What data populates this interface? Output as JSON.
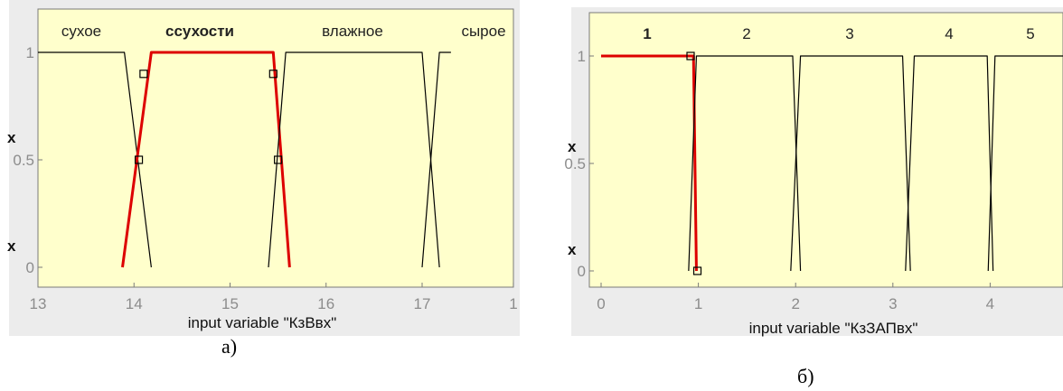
{
  "captions": {
    "a": "а)",
    "b": "б)"
  },
  "chart_data": [
    {
      "type": "line",
      "title": "",
      "xlabel": "input variable \"КзВвх\"",
      "ylabel": "",
      "ylabel_fragments": [
        "x",
        "x"
      ],
      "xlim": [
        13,
        17.1
      ],
      "ylim": [
        0,
        1
      ],
      "x_ticks": [
        "13",
        "14",
        "15",
        "16",
        "17",
        "1"
      ],
      "y_ticks": [
        "1",
        "0.5",
        "0"
      ],
      "membership_functions": [
        {
          "name": "сухое",
          "points": [
            [
              13,
              1
            ],
            [
              13.9,
              1
            ],
            [
              14.18,
              0
            ]
          ],
          "highlighted": false
        },
        {
          "name": "ссухости",
          "points": [
            [
              13.88,
              0
            ],
            [
              14.18,
              1
            ],
            [
              15.45,
              1
            ],
            [
              15.62,
              0
            ]
          ],
          "highlighted": true
        },
        {
          "name": "влажное",
          "points": [
            [
              15.4,
              0
            ],
            [
              15.58,
              1
            ],
            [
              17.0,
              1
            ],
            [
              17.18,
              0
            ]
          ],
          "highlighted": false
        },
        {
          "name": "сырое",
          "points": [
            [
              17.0,
              0
            ],
            [
              17.18,
              1
            ],
            [
              17.3,
              1
            ]
          ],
          "highlighted": false
        }
      ],
      "selected_points": [
        [
          14.05,
          0.5
        ],
        [
          14.1,
          0.9
        ],
        [
          15.45,
          0.9
        ],
        [
          15.5,
          0.5
        ]
      ],
      "colors": {
        "background": "#ffffcc",
        "line": "#000000",
        "highlight": "#dd0000"
      }
    },
    {
      "type": "line",
      "title": "",
      "xlabel": "input variable \"КзЗАПвх\"",
      "ylabel": "",
      "ylabel_fragments": [
        "x",
        "х"
      ],
      "xlim": [
        0,
        5
      ],
      "ylim": [
        0,
        1
      ],
      "x_ticks": [
        "0",
        "1",
        "2",
        "3",
        "4"
      ],
      "y_ticks": [
        "1",
        "0.5",
        "0"
      ],
      "membership_functions": [
        {
          "name": "1",
          "points": [
            [
              0,
              1
            ],
            [
              0.95,
              1
            ],
            [
              0.98,
              0
            ]
          ],
          "highlighted": true
        },
        {
          "name": "2",
          "points": [
            [
              0.9,
              0
            ],
            [
              0.98,
              1
            ],
            [
              1.97,
              1
            ],
            [
              2.05,
              0
            ]
          ],
          "highlighted": false
        },
        {
          "name": "3",
          "points": [
            [
              1.95,
              0
            ],
            [
              2.05,
              1
            ],
            [
              3.1,
              1
            ],
            [
              3.18,
              0
            ]
          ],
          "highlighted": false
        },
        {
          "name": "4",
          "points": [
            [
              3.13,
              0
            ],
            [
              3.22,
              1
            ],
            [
              3.97,
              1
            ],
            [
              4.03,
              0
            ]
          ],
          "highlighted": false
        },
        {
          "name": "5",
          "points": [
            [
              3.98,
              0
            ],
            [
              4.05,
              1
            ],
            [
              5.2,
              1
            ]
          ],
          "highlighted": false
        }
      ],
      "selected_points": [
        [
          0.92,
          1
        ],
        [
          0.99,
          0
        ]
      ],
      "colors": {
        "background": "#ffffcc",
        "line": "#000000",
        "highlight": "#dd0000"
      }
    }
  ]
}
